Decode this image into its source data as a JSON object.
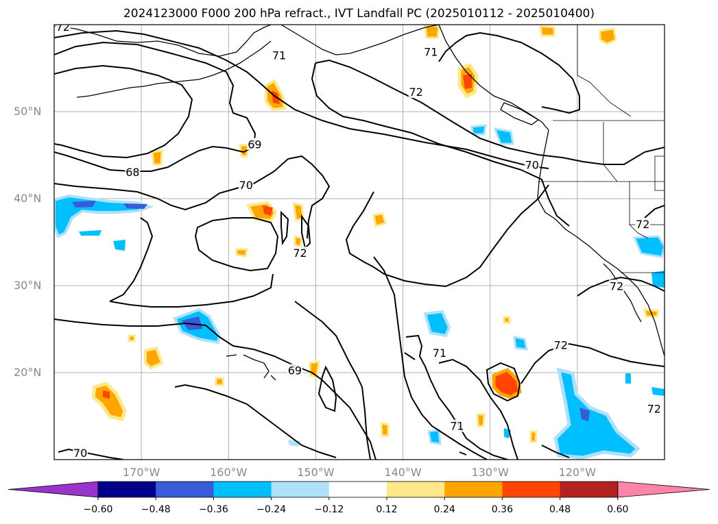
{
  "title": "2024123000 F000 200 hPa refract., IVT Landfall PC (2025010112 - 2025010400)",
  "map": {
    "projection": "PlateCarree",
    "extent": {
      "lon_min": -180,
      "lon_max": -110,
      "lat_min": 10,
      "lat_max": 60
    },
    "lat_ticks": [
      {
        "value": 50,
        "label": "50°N"
      },
      {
        "value": 40,
        "label": "40°N"
      },
      {
        "value": 30,
        "label": "30°N"
      },
      {
        "value": 20,
        "label": "20°N"
      }
    ],
    "lon_ticks": [
      {
        "value": -170,
        "label": "170°W"
      },
      {
        "value": -160,
        "label": "160°W"
      },
      {
        "value": -150,
        "label": "150°W"
      },
      {
        "value": -140,
        "label": "140°W"
      },
      {
        "value": -130,
        "label": "130°W"
      },
      {
        "value": -120,
        "label": "120°W"
      }
    ],
    "contour_labels": [
      {
        "text": "72",
        "lon": -179,
        "lat": 59.7
      },
      {
        "text": "71",
        "lon": -154.2,
        "lat": 56.4
      },
      {
        "text": "71",
        "lon": -136.8,
        "lat": 56.8
      },
      {
        "text": "72",
        "lon": -138.5,
        "lat": 52.2
      },
      {
        "text": "69",
        "lon": -157,
        "lat": 46.2
      },
      {
        "text": "68",
        "lon": -171,
        "lat": 43
      },
      {
        "text": "70",
        "lon": -158,
        "lat": 41.5
      },
      {
        "text": "70",
        "lon": -125.2,
        "lat": 43.8
      },
      {
        "text": "72",
        "lon": -151.8,
        "lat": 33.7
      },
      {
        "text": "72",
        "lon": -112.5,
        "lat": 37
      },
      {
        "text": "72",
        "lon": -115.5,
        "lat": 29.9
      },
      {
        "text": "69",
        "lon": -152.4,
        "lat": 20.2
      },
      {
        "text": "71",
        "lon": -135.8,
        "lat": 22.2
      },
      {
        "text": "72",
        "lon": -121.9,
        "lat": 23.1
      },
      {
        "text": "71",
        "lon": -133.8,
        "lat": 13.8
      },
      {
        "text": "72",
        "lon": -111.2,
        "lat": 15.8
      },
      {
        "text": "70",
        "lon": -177,
        "lat": 10.7
      }
    ],
    "colors": {
      "land_outline": "#000000",
      "grid": "#b0b0b0",
      "contour": "#000000"
    }
  },
  "colorbar": {
    "ticks": [
      "−0.60",
      "−0.48",
      "−0.36",
      "−0.24",
      "−0.12",
      "0.12",
      "0.24",
      "0.36",
      "0.48",
      "0.60"
    ],
    "levels": [
      -0.6,
      -0.48,
      -0.36,
      -0.24,
      -0.12,
      0.12,
      0.24,
      0.36,
      0.48,
      0.6
    ],
    "colors": [
      "#9933cc",
      "#00008b",
      "#3a5bd9",
      "#00bfff",
      "#aee0fa",
      "#ffffff",
      "#ffe88a",
      "#ffa500",
      "#ff4500",
      "#b22222",
      "#ff85a8"
    ],
    "extend": "both"
  }
}
